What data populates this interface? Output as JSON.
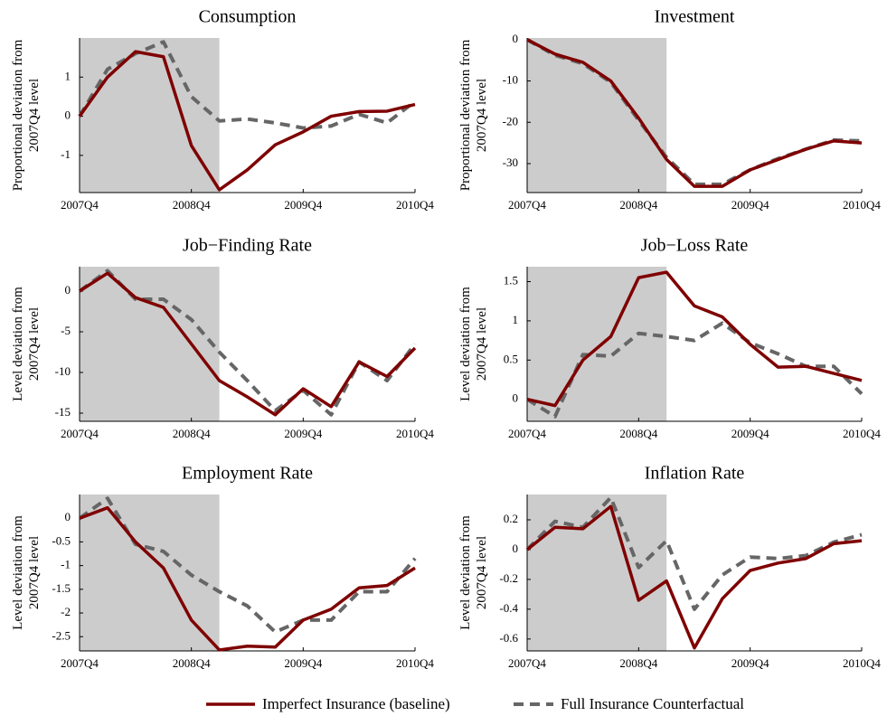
{
  "chart_data": [
    {
      "type": "line",
      "title": "Consumption",
      "ylabel": [
        "Proportional deviation from",
        "2007Q4 level"
      ],
      "categories": [
        "2007Q4",
        null,
        null,
        null,
        "2008Q4",
        null,
        null,
        null,
        "2009Q4",
        null,
        null,
        null,
        "2010Q4"
      ],
      "shaded_range": [
        0,
        5
      ],
      "ylim": [
        -1.95,
        2.0
      ],
      "yticks": [
        -1,
        0,
        1
      ],
      "series": [
        {
          "name": "Imperfect Insurance (baseline)",
          "color": "#7f0000",
          "linestyle": "solid",
          "values": [
            0,
            1.0,
            1.65,
            1.52,
            -0.75,
            -1.88,
            -1.37,
            -0.73,
            -0.4,
            0.0,
            0.12,
            0.13,
            0.3
          ]
        },
        {
          "name": "Full Insurance Counterfactual",
          "color": "#666666",
          "linestyle": "dashed",
          "values": [
            0,
            1.2,
            1.6,
            1.9,
            0.5,
            -0.12,
            -0.07,
            -0.17,
            -0.3,
            -0.25,
            0.05,
            -0.17,
            0.38
          ]
        }
      ]
    },
    {
      "type": "line",
      "title": "Investment",
      "ylabel": [
        "Proportional deviation from",
        "2007Q4 level"
      ],
      "categories": [
        "2007Q4",
        null,
        null,
        null,
        "2008Q4",
        null,
        null,
        null,
        "2009Q4",
        null,
        null,
        null,
        "2010Q4"
      ],
      "shaded_range": [
        0,
        5
      ],
      "ylim": [
        -37,
        0.4
      ],
      "yticks": [
        -30,
        -20,
        -10,
        0
      ],
      "series": [
        {
          "color": "#7f0000",
          "linestyle": "solid",
          "values": [
            0,
            -3.5,
            -5.5,
            -10,
            -19,
            -29,
            -35.5,
            -35.5,
            -31.5,
            -29,
            -26.5,
            -24.5,
            -25
          ]
        },
        {
          "color": "#666666",
          "linestyle": "dashed",
          "values": [
            0,
            -3.8,
            -5.8,
            -10.3,
            -19.5,
            -28.5,
            -35,
            -35,
            -31.5,
            -28.8,
            -26.5,
            -24.3,
            -24.5
          ]
        }
      ]
    },
    {
      "type": "line",
      "title": "Job−Finding Rate",
      "ylabel": [
        "Level deviation from",
        "2007Q4 level"
      ],
      "categories": [
        "2007Q4",
        null,
        null,
        null,
        "2008Q4",
        null,
        null,
        null,
        "2009Q4",
        null,
        null,
        null,
        "2010Q4"
      ],
      "shaded_range": [
        0,
        5
      ],
      "ylim": [
        -16,
        3
      ],
      "yticks": [
        -15,
        -10,
        -5,
        0
      ],
      "series": [
        {
          "color": "#7f0000",
          "linestyle": "solid",
          "values": [
            0,
            2.2,
            -0.8,
            -2,
            -6.5,
            -11,
            -13,
            -15.2,
            -12,
            -14.2,
            -8.7,
            -10.5,
            -7
          ]
        },
        {
          "color": "#666666",
          "linestyle": "dashed",
          "values": [
            0,
            2.5,
            -1,
            -1,
            -3.5,
            -7.5,
            -11,
            -14.7,
            -12.2,
            -15.2,
            -8.7,
            -11,
            -6.5
          ]
        }
      ]
    },
    {
      "type": "line",
      "title": "Job−Loss Rate",
      "ylabel": [
        "Level deviation from",
        "2007Q4 level"
      ],
      "categories": [
        "2007Q4",
        null,
        null,
        null,
        "2008Q4",
        null,
        null,
        null,
        "2009Q4",
        null,
        null,
        null,
        "2010Q4"
      ],
      "shaded_range": [
        0,
        5
      ],
      "ylim": [
        -0.28,
        1.69
      ],
      "yticks": [
        0,
        0.5,
        1,
        1.5
      ],
      "series": [
        {
          "color": "#7f0000",
          "linestyle": "solid",
          "values": [
            0,
            -0.08,
            0.5,
            0.8,
            1.55,
            1.62,
            1.19,
            1.05,
            0.7,
            0.41,
            0.42,
            0.33,
            0.24
          ]
        },
        {
          "color": "#666666",
          "linestyle": "dashed",
          "values": [
            0,
            -0.22,
            0.57,
            0.55,
            0.84,
            0.8,
            0.75,
            0.97,
            0.72,
            0.58,
            0.42,
            0.42,
            0.07
          ]
        }
      ]
    },
    {
      "type": "line",
      "title": "Employment Rate",
      "ylabel": [
        "Level deviation from",
        "2007Q4 level"
      ],
      "categories": [
        "2007Q4",
        null,
        null,
        null,
        "2008Q4",
        null,
        null,
        null,
        "2009Q4",
        null,
        null,
        null,
        "2010Q4"
      ],
      "shaded_range": [
        0,
        5
      ],
      "ylim": [
        -2.8,
        0.5
      ],
      "yticks": [
        -2.5,
        -2,
        -1.5,
        -1,
        -0.5,
        0
      ],
      "series": [
        {
          "color": "#7f0000",
          "linestyle": "solid",
          "values": [
            0,
            0.22,
            -0.5,
            -1.05,
            -2.15,
            -2.78,
            -2.7,
            -2.72,
            -2.15,
            -1.92,
            -1.47,
            -1.42,
            -1.05
          ]
        },
        {
          "color": "#666666",
          "linestyle": "dashed",
          "values": [
            0,
            0.42,
            -0.55,
            -0.7,
            -1.2,
            -1.55,
            -1.85,
            -2.4,
            -2.15,
            -2.15,
            -1.55,
            -1.55,
            -0.85
          ]
        }
      ]
    },
    {
      "type": "line",
      "title": "Inflation Rate",
      "ylabel": [
        "Level deviation from",
        "2007Q4 level"
      ],
      "categories": [
        "2007Q4",
        null,
        null,
        null,
        "2008Q4",
        null,
        null,
        null,
        "2009Q4",
        null,
        null,
        null,
        "2010Q4"
      ],
      "shaded_range": [
        0,
        5
      ],
      "ylim": [
        -0.68,
        0.37
      ],
      "yticks": [
        -0.6,
        -0.4,
        -0.2,
        0,
        0.2
      ],
      "series": [
        {
          "color": "#7f0000",
          "linestyle": "solid",
          "values": [
            0,
            0.15,
            0.14,
            0.29,
            -0.34,
            -0.21,
            -0.66,
            -0.33,
            -0.14,
            -0.09,
            -0.06,
            0.04,
            0.06
          ]
        },
        {
          "color": "#666666",
          "linestyle": "dashed",
          "values": [
            0,
            0.19,
            0.15,
            0.35,
            -0.12,
            0.06,
            -0.4,
            -0.17,
            -0.05,
            -0.06,
            -0.04,
            0.05,
            0.1
          ]
        }
      ]
    }
  ]
}
